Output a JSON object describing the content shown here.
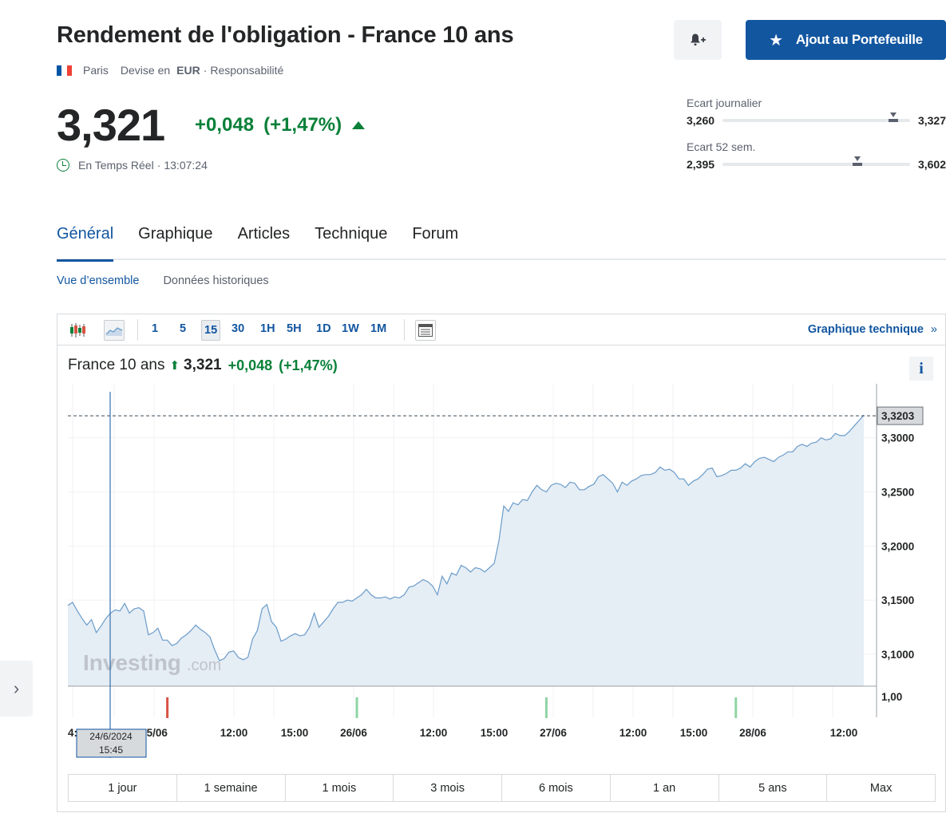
{
  "header": {
    "title": "Rendement de l'obligation - France 10 ans",
    "location": "Paris",
    "currency_label": "Devise en",
    "currency": "EUR",
    "separator": "·",
    "disclaimer": "Responsabilité",
    "flag_colors": [
      "#0055a4",
      "#ffffff",
      "#ef4135"
    ]
  },
  "actions": {
    "alert_icon": "bell-plus-icon",
    "portfolio_label": "Ajout au Portefeuille",
    "portfolio_icon": "star-icon",
    "accent_color": "#1256a0"
  },
  "quote": {
    "price": "3,321",
    "change": "+0,048",
    "change_pct": "(+1,47%)",
    "direction": "up",
    "up_color": "#0a8039",
    "realtime_label": "En Temps Réel",
    "time": "13:07:24"
  },
  "ranges": {
    "daily": {
      "label": "Ecart journalier",
      "low": "3,260",
      "high": "3,327",
      "current": 0.91
    },
    "week52": {
      "label": "Ecart 52 sem.",
      "low": "2,395",
      "high": "3,602",
      "current": 0.72
    }
  },
  "tabs": [
    "Général",
    "Graphique",
    "Articles",
    "Technique",
    "Forum"
  ],
  "subtabs": [
    "Vue d’ensemble",
    "Données historiques"
  ],
  "toolbar": {
    "intervals": [
      "1",
      "5",
      "15",
      "30",
      "1H",
      "5H",
      "1D",
      "1W",
      "1M"
    ],
    "active_interval": "15",
    "tech_link": "Graphique technique",
    "tech_link_arrow": "»"
  },
  "legend": {
    "name": "France 10 ans",
    "value": "3,321",
    "change": "+0,048",
    "change_pct": "(+1,47%)",
    "info": "i"
  },
  "watermark": {
    "brand": "Investing",
    "suffix": ".com"
  },
  "chart_data": {
    "type": "area",
    "y_ticks": [
      "3,3000",
      "3,2500",
      "3,2000",
      "3,1500",
      "3,1000"
    ],
    "y_tick_values": [
      3.3,
      3.25,
      3.2,
      3.15,
      3.1
    ],
    "ylim": [
      3.0705,
      3.3425
    ],
    "last_value_label": "3,3203",
    "last_value": 3.3203,
    "volume_tick": "1,00",
    "x_ticks": [
      "25/06",
      "12:00",
      "15:00",
      "26/06",
      "12:00",
      "15:00",
      "27/06",
      "12:00",
      "15:00",
      "28/06",
      "12:00"
    ],
    "x_tick_partial": "4:",
    "crosshair_label": [
      "24/6/2024",
      "15:45"
    ],
    "series_color": "#6a9cc9",
    "fill_color": "#e5edf5",
    "values": [
      3.145,
      3.148,
      3.14,
      3.133,
      3.127,
      3.132,
      3.12,
      3.126,
      3.133,
      3.138,
      3.141,
      3.14,
      3.147,
      3.138,
      3.142,
      3.143,
      3.14,
      3.118,
      3.12,
      3.124,
      3.113,
      3.113,
      3.108,
      3.11,
      3.115,
      3.118,
      3.122,
      3.127,
      3.123,
      3.12,
      3.116,
      3.104,
      3.094,
      3.096,
      3.102,
      3.103,
      3.097,
      3.095,
      3.097,
      3.114,
      3.122,
      3.142,
      3.146,
      3.13,
      3.125,
      3.112,
      3.114,
      3.117,
      3.119,
      3.117,
      3.118,
      3.125,
      3.138,
      3.125,
      3.13,
      3.135,
      3.142,
      3.148,
      3.148,
      3.15,
      3.149,
      3.152,
      3.155,
      3.16,
      3.155,
      3.152,
      3.152,
      3.153,
      3.151,
      3.153,
      3.152,
      3.155,
      3.162,
      3.163,
      3.166,
      3.169,
      3.167,
      3.163,
      3.155,
      3.172,
      3.165,
      3.175,
      3.173,
      3.182,
      3.18,
      3.176,
      3.18,
      3.179,
      3.176,
      3.18,
      3.184,
      3.205,
      3.237,
      3.232,
      3.24,
      3.238,
      3.243,
      3.242,
      3.25,
      3.256,
      3.252,
      3.25,
      3.256,
      3.258,
      3.257,
      3.254,
      3.259,
      3.258,
      3.252,
      3.252,
      3.255,
      3.257,
      3.264,
      3.266,
      3.262,
      3.258,
      3.25,
      3.259,
      3.256,
      3.26,
      3.262,
      3.265,
      3.266,
      3.266,
      3.268,
      3.273,
      3.27,
      3.271,
      3.268,
      3.262,
      3.262,
      3.256,
      3.26,
      3.262,
      3.266,
      3.271,
      3.272,
      3.264,
      3.265,
      3.267,
      3.27,
      3.27,
      3.272,
      3.276,
      3.273,
      3.278,
      3.281,
      3.282,
      3.28,
      3.278,
      3.282,
      3.284,
      3.287,
      3.287,
      3.292,
      3.294,
      3.292,
      3.295,
      3.296,
      3.3,
      3.298,
      3.299,
      3.304,
      3.302,
      3.302,
      3.306,
      3.311,
      3.316,
      3.321
    ],
    "volume_bars": [
      {
        "index": 21,
        "color": "#d75442"
      },
      {
        "index": 61,
        "color": "#8fd4a3"
      },
      {
        "index": 101,
        "color": "#8fd4a3"
      },
      {
        "index": 141,
        "color": "#8fd4a3"
      }
    ]
  },
  "periods": [
    "1 jour",
    "1 semaine",
    "1 mois",
    "3 mois",
    "6 mois",
    "1 an",
    "5 ans",
    "Max"
  ]
}
